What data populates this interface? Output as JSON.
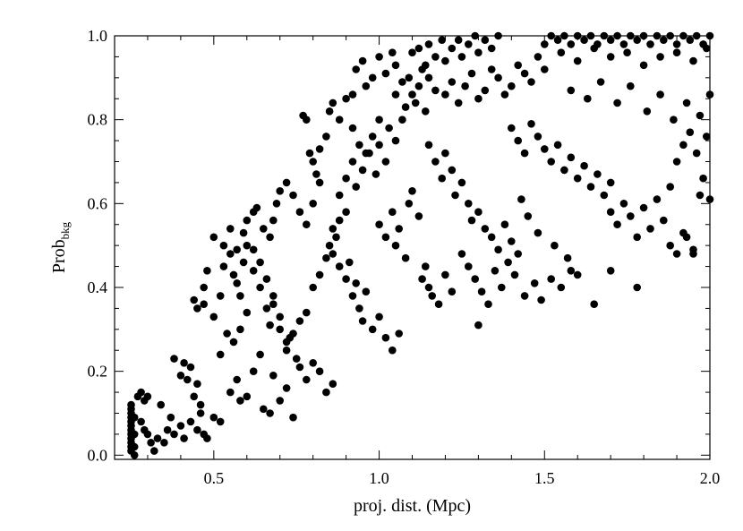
{
  "chart_data": {
    "type": "scatter",
    "title": "",
    "xlabel": "proj. dist. (Mpc)",
    "ylabel": {
      "main": "Prob",
      "subscript": "bkg"
    },
    "xlim": [
      0.2,
      2.0
    ],
    "ylim": [
      -0.01,
      1.0
    ],
    "xticks": [
      {
        "value": 0.5,
        "label": "0.5"
      },
      {
        "value": 1.0,
        "label": "1.0"
      },
      {
        "value": 1.5,
        "label": "1.5"
      },
      {
        "value": 2.0,
        "label": "2.0"
      }
    ],
    "yticks": [
      {
        "value": 0.0,
        "label": "0.0"
      },
      {
        "value": 0.2,
        "label": "0.2"
      },
      {
        "value": 0.4,
        "label": "0.4"
      },
      {
        "value": 0.6,
        "label": "0.6"
      },
      {
        "value": 0.8,
        "label": "0.8"
      },
      {
        "value": 1.0,
        "label": "1.0"
      }
    ],
    "grid": false,
    "marker_color": "#000000",
    "points": [
      [
        0.25,
        0.12
      ],
      [
        0.25,
        0.11
      ],
      [
        0.25,
        0.1
      ],
      [
        0.25,
        0.09
      ],
      [
        0.25,
        0.08
      ],
      [
        0.25,
        0.07
      ],
      [
        0.25,
        0.06
      ],
      [
        0.25,
        0.05
      ],
      [
        0.25,
        0.04
      ],
      [
        0.25,
        0.03
      ],
      [
        0.25,
        0.02
      ],
      [
        0.25,
        0.01
      ],
      [
        0.26,
        0.0
      ],
      [
        0.26,
        0.02
      ],
      [
        0.26,
        0.05
      ],
      [
        0.26,
        0.09
      ],
      [
        0.27,
        0.14
      ],
      [
        0.28,
        0.15
      ],
      [
        0.29,
        0.13
      ],
      [
        0.3,
        0.14
      ],
      [
        0.28,
        0.08
      ],
      [
        0.29,
        0.06
      ],
      [
        0.31,
        0.03
      ],
      [
        0.32,
        0.01
      ],
      [
        0.3,
        0.05
      ],
      [
        0.33,
        0.04
      ],
      [
        0.35,
        0.03
      ],
      [
        0.36,
        0.06
      ],
      [
        0.37,
        0.09
      ],
      [
        0.34,
        0.12
      ],
      [
        0.38,
        0.05
      ],
      [
        0.4,
        0.07
      ],
      [
        0.41,
        0.04
      ],
      [
        0.43,
        0.08
      ],
      [
        0.45,
        0.06
      ],
      [
        0.46,
        0.1
      ],
      [
        0.47,
        0.05
      ],
      [
        0.48,
        0.04
      ],
      [
        0.5,
        0.09
      ],
      [
        0.52,
        0.08
      ],
      [
        0.38,
        0.23
      ],
      [
        0.4,
        0.19
      ],
      [
        0.41,
        0.22
      ],
      [
        0.42,
        0.18
      ],
      [
        0.43,
        0.21
      ],
      [
        0.44,
        0.14
      ],
      [
        0.45,
        0.17
      ],
      [
        0.46,
        0.12
      ],
      [
        0.44,
        0.37
      ],
      [
        0.45,
        0.35
      ],
      [
        0.47,
        0.36
      ],
      [
        0.47,
        0.4
      ],
      [
        0.48,
        0.44
      ],
      [
        0.5,
        0.33
      ],
      [
        0.52,
        0.38
      ],
      [
        0.53,
        0.45
      ],
      [
        0.55,
        0.48
      ],
      [
        0.56,
        0.43
      ],
      [
        0.57,
        0.41
      ],
      [
        0.58,
        0.38
      ],
      [
        0.59,
        0.46
      ],
      [
        0.6,
        0.5
      ],
      [
        0.5,
        0.52
      ],
      [
        0.53,
        0.5
      ],
      [
        0.55,
        0.54
      ],
      [
        0.57,
        0.49
      ],
      [
        0.59,
        0.53
      ],
      [
        0.6,
        0.56
      ],
      [
        0.62,
        0.58
      ],
      [
        0.63,
        0.59
      ],
      [
        0.65,
        0.54
      ],
      [
        0.67,
        0.52
      ],
      [
        0.68,
        0.56
      ],
      [
        0.69,
        0.6
      ],
      [
        0.7,
        0.63
      ],
      [
        0.72,
        0.65
      ],
      [
        0.74,
        0.62
      ],
      [
        0.76,
        0.58
      ],
      [
        0.78,
        0.55
      ],
      [
        0.8,
        0.6
      ],
      [
        0.82,
        0.65
      ],
      [
        0.62,
        0.44
      ],
      [
        0.64,
        0.4
      ],
      [
        0.66,
        0.35
      ],
      [
        0.67,
        0.31
      ],
      [
        0.68,
        0.36
      ],
      [
        0.7,
        0.3
      ],
      [
        0.72,
        0.25
      ],
      [
        0.73,
        0.28
      ],
      [
        0.75,
        0.23
      ],
      [
        0.76,
        0.21
      ],
      [
        0.78,
        0.18
      ],
      [
        0.8,
        0.22
      ],
      [
        0.82,
        0.2
      ],
      [
        0.84,
        0.15
      ],
      [
        0.86,
        0.17
      ],
      [
        0.55,
        0.15
      ],
      [
        0.57,
        0.18
      ],
      [
        0.58,
        0.13
      ],
      [
        0.6,
        0.14
      ],
      [
        0.62,
        0.2
      ],
      [
        0.64,
        0.24
      ],
      [
        0.65,
        0.11
      ],
      [
        0.67,
        0.1
      ],
      [
        0.68,
        0.19
      ],
      [
        0.7,
        0.13
      ],
      [
        0.72,
        0.16
      ],
      [
        0.74,
        0.09
      ],
      [
        0.77,
        0.81
      ],
      [
        0.78,
        0.8
      ],
      [
        0.79,
        0.72
      ],
      [
        0.8,
        0.7
      ],
      [
        0.81,
        0.67
      ],
      [
        0.82,
        0.73
      ],
      [
        0.84,
        0.76
      ],
      [
        0.85,
        0.82
      ],
      [
        0.86,
        0.84
      ],
      [
        0.88,
        0.8
      ],
      [
        0.9,
        0.85
      ],
      [
        0.92,
        0.86
      ],
      [
        0.93,
        0.92
      ],
      [
        0.95,
        0.94
      ],
      [
        0.96,
        0.88
      ],
      [
        0.98,
        0.9
      ],
      [
        1.0,
        0.95
      ],
      [
        1.02,
        0.91
      ],
      [
        1.04,
        0.96
      ],
      [
        1.05,
        0.93
      ],
      [
        0.85,
        0.5
      ],
      [
        0.86,
        0.48
      ],
      [
        0.87,
        0.52
      ],
      [
        0.88,
        0.45
      ],
      [
        0.9,
        0.42
      ],
      [
        0.91,
        0.46
      ],
      [
        0.92,
        0.38
      ],
      [
        0.93,
        0.41
      ],
      [
        0.94,
        0.35
      ],
      [
        0.95,
        0.32
      ],
      [
        0.96,
        0.39
      ],
      [
        0.98,
        0.3
      ],
      [
        1.0,
        0.33
      ],
      [
        1.02,
        0.28
      ],
      [
        1.04,
        0.25
      ],
      [
        1.06,
        0.29
      ],
      [
        0.88,
        0.62
      ],
      [
        0.9,
        0.66
      ],
      [
        0.92,
        0.7
      ],
      [
        0.93,
        0.64
      ],
      [
        0.95,
        0.68
      ],
      [
        0.97,
        0.72
      ],
      [
        0.99,
        0.67
      ],
      [
        1.0,
        0.74
      ],
      [
        1.02,
        0.7
      ],
      [
        1.03,
        0.78
      ],
      [
        1.05,
        0.75
      ],
      [
        1.07,
        0.8
      ],
      [
        1.08,
        0.83
      ],
      [
        1.1,
        0.86
      ],
      [
        1.12,
        0.88
      ],
      [
        1.14,
        0.82
      ],
      [
        1.0,
        0.55
      ],
      [
        1.02,
        0.52
      ],
      [
        1.04,
        0.58
      ],
      [
        1.05,
        0.5
      ],
      [
        1.06,
        0.54
      ],
      [
        1.08,
        0.47
      ],
      [
        1.09,
        0.6
      ],
      [
        1.1,
        0.63
      ],
      [
        1.12,
        0.57
      ],
      [
        1.13,
        0.42
      ],
      [
        1.14,
        0.45
      ],
      [
        1.15,
        0.4
      ],
      [
        1.16,
        0.38
      ],
      [
        1.18,
        0.36
      ],
      [
        1.2,
        0.43
      ],
      [
        1.22,
        0.39
      ],
      [
        1.1,
        0.96
      ],
      [
        1.12,
        0.97
      ],
      [
        1.14,
        0.93
      ],
      [
        1.15,
        0.98
      ],
      [
        1.17,
        0.95
      ],
      [
        1.19,
        0.99
      ],
      [
        1.2,
        0.94
      ],
      [
        1.22,
        0.97
      ],
      [
        1.24,
        0.99
      ],
      [
        1.25,
        0.95
      ],
      [
        1.27,
        0.98
      ],
      [
        1.29,
        1.0
      ],
      [
        1.3,
        0.96
      ],
      [
        1.32,
        0.99
      ],
      [
        1.34,
        0.97
      ],
      [
        1.36,
        1.0
      ],
      [
        1.15,
        0.74
      ],
      [
        1.17,
        0.7
      ],
      [
        1.19,
        0.66
      ],
      [
        1.2,
        0.72
      ],
      [
        1.22,
        0.68
      ],
      [
        1.23,
        0.62
      ],
      [
        1.25,
        0.65
      ],
      [
        1.27,
        0.6
      ],
      [
        1.28,
        0.56
      ],
      [
        1.3,
        0.58
      ],
      [
        1.32,
        0.54
      ],
      [
        1.34,
        0.52
      ],
      [
        1.36,
        0.49
      ],
      [
        1.38,
        0.55
      ],
      [
        1.4,
        0.51
      ],
      [
        1.42,
        0.48
      ],
      [
        1.2,
        0.86
      ],
      [
        1.22,
        0.89
      ],
      [
        1.24,
        0.84
      ],
      [
        1.26,
        0.88
      ],
      [
        1.28,
        0.91
      ],
      [
        1.3,
        0.85
      ],
      [
        1.32,
        0.87
      ],
      [
        1.34,
        0.92
      ],
      [
        1.36,
        0.9
      ],
      [
        1.38,
        0.86
      ],
      [
        1.4,
        0.88
      ],
      [
        1.42,
        0.93
      ],
      [
        1.44,
        0.91
      ],
      [
        1.46,
        0.89
      ],
      [
        1.48,
        0.95
      ],
      [
        1.5,
        0.92
      ],
      [
        1.25,
        0.48
      ],
      [
        1.27,
        0.45
      ],
      [
        1.29,
        0.42
      ],
      [
        1.31,
        0.39
      ],
      [
        1.33,
        0.36
      ],
      [
        1.35,
        0.44
      ],
      [
        1.37,
        0.4
      ],
      [
        1.39,
        0.46
      ],
      [
        1.3,
        0.31
      ],
      [
        1.41,
        0.43
      ],
      [
        1.44,
        0.38
      ],
      [
        1.47,
        0.41
      ],
      [
        1.49,
        0.37
      ],
      [
        1.52,
        0.42
      ],
      [
        1.55,
        0.4
      ],
      [
        1.58,
        0.44
      ],
      [
        1.4,
        0.78
      ],
      [
        1.42,
        0.75
      ],
      [
        1.44,
        0.72
      ],
      [
        1.46,
        0.79
      ],
      [
        1.48,
        0.76
      ],
      [
        1.5,
        0.73
      ],
      [
        1.52,
        0.7
      ],
      [
        1.54,
        0.74
      ],
      [
        1.56,
        0.68
      ],
      [
        1.58,
        0.71
      ],
      [
        1.6,
        0.66
      ],
      [
        1.62,
        0.69
      ],
      [
        1.64,
        0.64
      ],
      [
        1.66,
        0.67
      ],
      [
        1.68,
        0.62
      ],
      [
        1.7,
        0.65
      ],
      [
        1.5,
        0.98
      ],
      [
        1.52,
        1.0
      ],
      [
        1.54,
        0.99
      ],
      [
        1.56,
        1.0
      ],
      [
        1.58,
        0.98
      ],
      [
        1.6,
        1.0
      ],
      [
        1.62,
        0.99
      ],
      [
        1.64,
        1.0
      ],
      [
        1.66,
        0.98
      ],
      [
        1.68,
        1.0
      ],
      [
        1.7,
        0.99
      ],
      [
        1.72,
        1.0
      ],
      [
        1.74,
        0.98
      ],
      [
        1.76,
        1.0
      ],
      [
        1.78,
        0.99
      ],
      [
        1.8,
        1.0
      ],
      [
        1.82,
        0.98
      ],
      [
        1.84,
        1.0
      ],
      [
        1.86,
        0.99
      ],
      [
        1.88,
        1.0
      ],
      [
        1.9,
        0.98
      ],
      [
        1.92,
        1.0
      ],
      [
        1.94,
        0.99
      ],
      [
        1.96,
        1.0
      ],
      [
        1.98,
        0.98
      ],
      [
        2.0,
        1.0
      ],
      [
        1.55,
        0.96
      ],
      [
        1.6,
        0.94
      ],
      [
        1.65,
        0.97
      ],
      [
        1.7,
        0.95
      ],
      [
        1.75,
        0.96
      ],
      [
        1.8,
        0.93
      ],
      [
        1.85,
        0.95
      ],
      [
        1.9,
        0.96
      ],
      [
        1.95,
        0.94
      ],
      [
        1.99,
        0.97
      ],
      [
        1.58,
        0.87
      ],
      [
        1.63,
        0.85
      ],
      [
        1.67,
        0.89
      ],
      [
        1.72,
        0.84
      ],
      [
        1.76,
        0.88
      ],
      [
        1.81,
        0.82
      ],
      [
        1.85,
        0.86
      ],
      [
        1.89,
        0.8
      ],
      [
        1.93,
        0.84
      ],
      [
        1.97,
        0.81
      ],
      [
        2.0,
        0.86
      ],
      [
        1.99,
        0.76
      ],
      [
        1.7,
        0.58
      ],
      [
        1.72,
        0.55
      ],
      [
        1.74,
        0.6
      ],
      [
        1.76,
        0.57
      ],
      [
        1.78,
        0.52
      ],
      [
        1.8,
        0.59
      ],
      [
        1.82,
        0.54
      ],
      [
        1.84,
        0.61
      ],
      [
        1.86,
        0.56
      ],
      [
        1.88,
        0.5
      ],
      [
        1.9,
        0.48
      ],
      [
        1.92,
        0.53
      ],
      [
        1.95,
        0.49
      ],
      [
        1.97,
        0.62
      ],
      [
        2.0,
        0.61
      ],
      [
        1.98,
        0.66
      ],
      [
        1.65,
        0.36
      ],
      [
        1.7,
        0.44
      ],
      [
        1.78,
        0.4
      ],
      [
        1.95,
        0.48
      ],
      [
        1.93,
        0.52
      ],
      [
        1.88,
        0.64
      ],
      [
        1.9,
        0.7
      ],
      [
        1.92,
        0.74
      ],
      [
        1.94,
        0.77
      ],
      [
        1.96,
        0.72
      ],
      [
        1.6,
        0.43
      ],
      [
        1.57,
        0.47
      ],
      [
        1.53,
        0.5
      ],
      [
        1.48,
        0.53
      ],
      [
        1.45,
        0.57
      ],
      [
        1.43,
        0.61
      ],
      [
        1.05,
        0.86
      ],
      [
        1.07,
        0.89
      ],
      [
        1.09,
        0.9
      ],
      [
        1.11,
        0.84
      ],
      [
        1.13,
        0.92
      ],
      [
        1.15,
        0.9
      ],
      [
        1.17,
        0.87
      ],
      [
        0.98,
        0.76
      ],
      [
        1.0,
        0.8
      ],
      [
        0.96,
        0.72
      ],
      [
        0.94,
        0.74
      ],
      [
        0.92,
        0.78
      ],
      [
        0.9,
        0.58
      ],
      [
        0.88,
        0.56
      ],
      [
        0.86,
        0.54
      ],
      [
        0.84,
        0.47
      ],
      [
        0.82,
        0.43
      ],
      [
        0.8,
        0.4
      ],
      [
        0.78,
        0.34
      ],
      [
        0.76,
        0.32
      ],
      [
        0.74,
        0.29
      ],
      [
        0.72,
        0.27
      ],
      [
        0.7,
        0.33
      ],
      [
        0.68,
        0.38
      ],
      [
        0.66,
        0.42
      ],
      [
        0.64,
        0.46
      ],
      [
        0.62,
        0.49
      ],
      [
        0.6,
        0.34
      ],
      [
        0.58,
        0.3
      ],
      [
        0.56,
        0.27
      ],
      [
        0.54,
        0.29
      ],
      [
        0.52,
        0.24
      ]
    ]
  }
}
